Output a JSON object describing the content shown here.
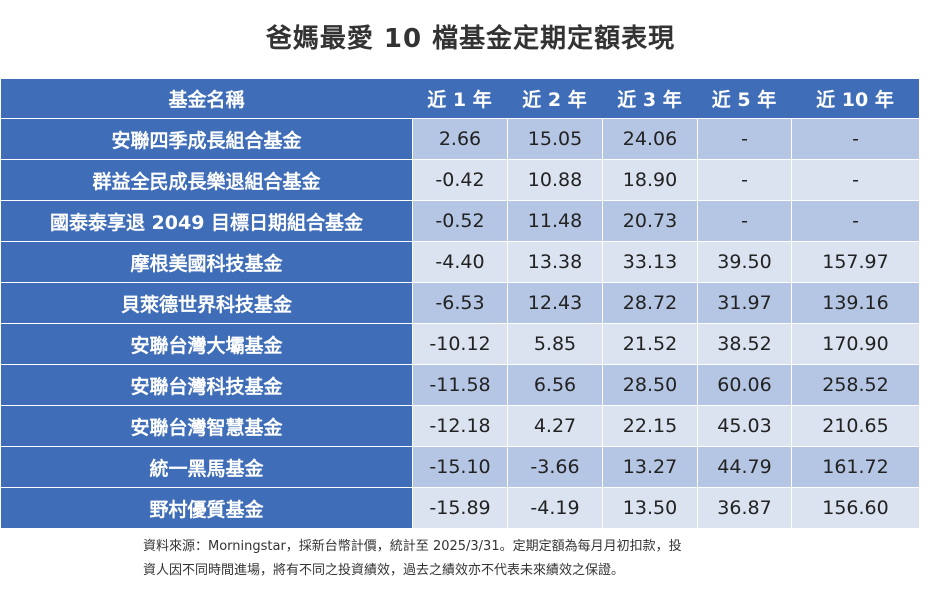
{
  "title": "爸媽最愛 10 檔基金定期定額表現",
  "chart_data": {
    "type": "table",
    "columns": [
      "基金名稱",
      "近 1 年",
      "近 2 年",
      "近 3 年",
      "近 5 年",
      "近 10 年"
    ],
    "rows": [
      {
        "name": "安聯四季成長組合基金",
        "values": [
          "2.66",
          "15.05",
          "24.06",
          "-",
          "-"
        ]
      },
      {
        "name": "群益全民成長樂退組合基金",
        "values": [
          "-0.42",
          "10.88",
          "18.90",
          "-",
          "-"
        ]
      },
      {
        "name": "國泰泰享退 2049 目標日期組合基金",
        "values": [
          "-0.52",
          "11.48",
          "20.73",
          "-",
          "-"
        ]
      },
      {
        "name": "摩根美國科技基金",
        "values": [
          "-4.40",
          "13.38",
          "33.13",
          "39.50",
          "157.97"
        ]
      },
      {
        "name": "貝萊德世界科技基金",
        "values": [
          "-6.53",
          "12.43",
          "28.72",
          "31.97",
          "139.16"
        ]
      },
      {
        "name": "安聯台灣大壩基金",
        "values": [
          "-10.12",
          "5.85",
          "21.52",
          "38.52",
          "170.90"
        ]
      },
      {
        "name": "安聯台灣科技基金",
        "values": [
          "-11.58",
          "6.56",
          "28.50",
          "60.06",
          "258.52"
        ]
      },
      {
        "name": "安聯台灣智慧基金",
        "values": [
          "-12.18",
          "4.27",
          "22.15",
          "45.03",
          "210.65"
        ]
      },
      {
        "name": "統一黑馬基金",
        "values": [
          "-15.10",
          "-3.66",
          "13.27",
          "44.79",
          "161.72"
        ]
      },
      {
        "name": "野村優質基金",
        "values": [
          "-15.89",
          "-4.19",
          "13.50",
          "36.87",
          "156.60"
        ]
      }
    ]
  },
  "footnote": {
    "line1": "資料來源：Morningstar，採新台幣計價，統計至 2025/3/31。定期定額為每月月初扣款，投",
    "line2": "資人因不同時間進場，將有不同之投資績效，過去之績效亦不代表未來績效之保證。"
  },
  "colors": {
    "header": "#3f6db8",
    "row_dark": "#b5c6e4",
    "row_light": "#dbe3f1"
  }
}
